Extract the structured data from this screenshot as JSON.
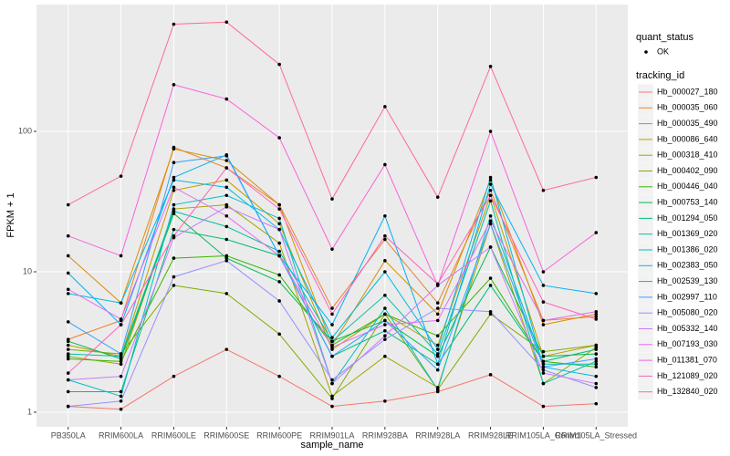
{
  "chart_data": {
    "type": "line",
    "x_label": "sample_name",
    "y_label": "FPKM + 1",
    "log_y": true,
    "grid": true,
    "ylim": [
      0.787,
      800
    ],
    "yticks": [
      1,
      10,
      100
    ],
    "shape_legend_title": "quant_status",
    "shape_legend_labels": [
      "OK"
    ],
    "color_legend_title": "tracking_id",
    "legend_position": "right",
    "categories": [
      "PB350LA",
      "RRIM600LA",
      "RRIM600LE",
      "RRIM600SE",
      "RRIM600PE",
      "RRIM901LA",
      "RRIM928BA",
      "RRIM928LA",
      "RRIM928LE",
      "RRIM105LA_Control",
      "RRIM105LA_Stressed"
    ],
    "series": [
      {
        "name": "Hb_000027_180",
        "color": "#F8766D",
        "values": [
          1.1,
          1.05,
          1.8,
          2.8,
          1.8,
          1.1,
          1.2,
          1.4,
          1.85,
          1.1,
          1.15
        ]
      },
      {
        "name": "Hb_000035_060",
        "color": "#EA8331",
        "values": [
          3.3,
          4.5,
          77,
          55,
          30,
          5.5,
          17,
          6,
          38,
          4.5,
          4.8
        ]
      },
      {
        "name": "Hb_000035_490",
        "color": "#D89000",
        "values": [
          13,
          6,
          75,
          62,
          30,
          3,
          12,
          5,
          45,
          4.2,
          5
        ]
      },
      {
        "name": "Hb_000086_640",
        "color": "#C09B00",
        "values": [
          3,
          2.5,
          38,
          45,
          22,
          2.8,
          5,
          3,
          35,
          2.5,
          3
        ]
      },
      {
        "name": "Hb_000318_410",
        "color": "#A3A500",
        "values": [
          2.5,
          2.2,
          28,
          30,
          16,
          1.3,
          2.5,
          1.5,
          22,
          1.6,
          2.9
        ]
      },
      {
        "name": "Hb_000402_090",
        "color": "#7CAE00",
        "values": [
          2.8,
          2.6,
          8,
          7,
          3.6,
          1.25,
          5,
          1.45,
          5,
          2.7,
          3
        ]
      },
      {
        "name": "Hb_000446_040",
        "color": "#39B600",
        "values": [
          2.4,
          2.3,
          12.5,
          13,
          9.5,
          3,
          5,
          3.5,
          9,
          2.3,
          2.1
        ]
      },
      {
        "name": "Hb_000753_140",
        "color": "#00BB4E",
        "values": [
          3.2,
          2.4,
          26,
          12.5,
          8.5,
          3.2,
          4.5,
          2.5,
          15,
          2.5,
          2.6
        ]
      },
      {
        "name": "Hb_001294_050",
        "color": "#00BF7D",
        "values": [
          1.4,
          1.4,
          20,
          17,
          13,
          2.5,
          3.8,
          2.2,
          8,
          2.3,
          2.8
        ]
      },
      {
        "name": "Hb_001369_020",
        "color": "#00C1A3",
        "values": [
          2.6,
          2.5,
          27,
          21,
          14,
          3.2,
          6.8,
          2.6,
          32,
          1.6,
          2.3
        ]
      },
      {
        "name": "Hb_001386_020",
        "color": "#00BFC4",
        "values": [
          1.7,
          1.3,
          30,
          35,
          24,
          1.6,
          5.5,
          1.45,
          25,
          2.2,
          2.2
        ]
      },
      {
        "name": "Hb_002383_050",
        "color": "#00BAE0",
        "values": [
          7,
          6,
          45,
          40,
          20,
          3.4,
          10,
          2.8,
          47,
          2.1,
          1.8
        ]
      },
      {
        "name": "Hb_002539_130",
        "color": "#00B0F6",
        "values": [
          9.8,
          4.2,
          47,
          68,
          13,
          4.2,
          25,
          2.2,
          42,
          8,
          7
        ]
      },
      {
        "name": "Hb_002997_110",
        "color": "#35A2FF",
        "values": [
          4.4,
          2.6,
          60,
          67,
          13,
          2.5,
          4.5,
          2,
          22,
          2.1,
          2.4
        ]
      },
      {
        "name": "Hb_005080_020",
        "color": "#9590FF",
        "values": [
          1.1,
          1.2,
          9.2,
          12,
          6.2,
          1.7,
          3.3,
          5.5,
          5.2,
          2,
          1.5
        ]
      },
      {
        "name": "Hb_005332_140",
        "color": "#C77CFF",
        "values": [
          1.7,
          1.8,
          17.5,
          29,
          20,
          1.6,
          3.5,
          8,
          15,
          1.9,
          1.6
        ]
      },
      {
        "name": "Hb_007193_030",
        "color": "#E76BF3",
        "values": [
          7.5,
          4.6,
          40,
          25,
          13,
          2.9,
          4.2,
          4.5,
          23,
          4.5,
          5.2
        ]
      },
      {
        "name": "Hb_011381_070",
        "color": "#FA62DB",
        "values": [
          18,
          13,
          215,
          170,
          90,
          14.5,
          58,
          8,
          100,
          10,
          19
        ]
      },
      {
        "name": "Hb_121089_020",
        "color": "#FF62BC",
        "values": [
          1.9,
          4.2,
          18,
          55,
          28,
          5,
          18,
          8.2,
          35,
          6.1,
          4.6
        ]
      },
      {
        "name": "Hb_132840_020",
        "color": "#FF6C91",
        "values": [
          30,
          48,
          580,
          600,
          300,
          33,
          150,
          34,
          290,
          38,
          47
        ]
      }
    ]
  }
}
